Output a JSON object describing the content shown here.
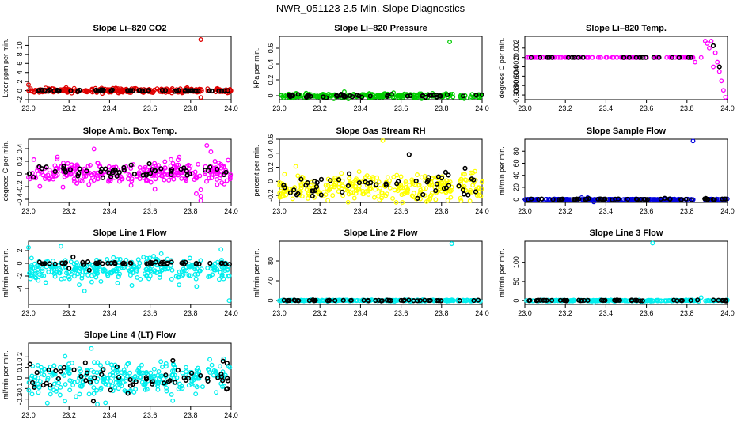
{
  "figure_title": "NWR_051123  2.5 Min. Slope Diagnostics",
  "colors": {
    "red": "#e00000",
    "green": "#00cc00",
    "magenta": "#ff00ff",
    "yellow": "#ffff00",
    "blue": "#0000dd",
    "cyan": "#00eeee",
    "black": "#000000"
  },
  "chart_data": [
    {
      "type": "scatter",
      "title": "Slope Li–820 CO2",
      "ylabel": "Ltcor ppm per min.",
      "xlim": [
        23.0,
        24.0
      ],
      "xticks": [
        "23.0",
        "23.2",
        "23.4",
        "23.6",
        "23.8",
        "24.0"
      ],
      "ylim": [
        -2,
        12
      ],
      "yticks": [
        -2,
        0,
        2,
        4,
        6,
        8,
        10
      ],
      "series": [
        {
          "name": "all",
          "color": "red",
          "n": 260,
          "center": 0.0,
          "spread": 0.25,
          "gap": [
            23.86,
            23.88
          ],
          "extra": [
            [
              23.0,
              1.3
            ],
            [
              23.085,
              0.6
            ],
            [
              23.85,
              11.3
            ],
            [
              23.85,
              -1.5
            ],
            [
              23.33,
              0.5
            ],
            [
              23.66,
              -0.3
            ]
          ]
        },
        {
          "name": "subset",
          "color": "black",
          "n": 55,
          "center": 0.0,
          "spread": 0.1,
          "gap": [
            23.86,
            23.88
          ]
        }
      ]
    },
    {
      "type": "scatter",
      "title": "Slope Li–820 Pressure",
      "ylabel": "kPa per min.",
      "xlim": [
        23.0,
        24.0
      ],
      "xticks": [
        "23.0",
        "23.2",
        "23.4",
        "23.6",
        "23.8",
        "24.0"
      ],
      "ylim": [
        -0.05,
        0.75
      ],
      "yticks": [
        0.0,
        0.2,
        0.4,
        0.6
      ],
      "series": [
        {
          "name": "all",
          "color": "green",
          "n": 260,
          "center": 0.0,
          "spread": 0.015,
          "gap": [
            23.86,
            23.89
          ],
          "extra": [
            [
              23.84,
              0.68
            ],
            [
              23.32,
              0.05
            ],
            [
              23.34,
              -0.04
            ]
          ]
        },
        {
          "name": "subset",
          "color": "black",
          "n": 50,
          "center": 0.0,
          "spread": 0.01,
          "gap": [
            23.86,
            23.89
          ]
        }
      ]
    },
    {
      "type": "scatter",
      "title": "Slope Li–820 Temp.",
      "ylabel": "degrees C per min.",
      "xlim": [
        23.0,
        24.0
      ],
      "xticks": [
        "23.0",
        "23.2",
        "23.4",
        "23.6",
        "23.8",
        "24.0"
      ],
      "ylim": [
        -0.009,
        0.0045
      ],
      "yticks": [
        -0.008,
        -0.006,
        -0.004,
        -0.002,
        0.0,
        0.002
      ],
      "series": [
        {
          "name": "all",
          "color": "magenta",
          "n": 110,
          "center": 0.0,
          "spread": 0.0,
          "xmax": 23.83,
          "extra": [
            [
              23.84,
              -0.001
            ],
            [
              23.87,
              0.0
            ],
            [
              23.89,
              0.0035
            ],
            [
              23.9,
              0.003
            ],
            [
              23.91,
              0.002
            ],
            [
              23.92,
              0.0035
            ],
            [
              23.93,
              0.0025
            ],
            [
              23.94,
              0.001
            ],
            [
              23.95,
              -0.001
            ],
            [
              23.96,
              -0.003
            ],
            [
              23.97,
              -0.005
            ],
            [
              23.98,
              -0.007
            ],
            [
              23.99,
              -0.0085
            ],
            [
              23.93,
              -0.002
            ]
          ]
        },
        {
          "name": "subset",
          "color": "black",
          "n": 25,
          "center": 0.0,
          "spread": 0.0,
          "xmax": 23.83,
          "extra": [
            [
              23.93,
              0.0025
            ],
            [
              23.96,
              -0.002
            ]
          ]
        }
      ]
    },
    {
      "type": "scatter",
      "title": "Slope Amb. Box Temp.",
      "ylabel": "degrees C per min.",
      "xlim": [
        23.0,
        24.0
      ],
      "xticks": [
        "23.0",
        "23.2",
        "23.4",
        "23.6",
        "23.8",
        "24.0"
      ],
      "ylim": [
        -0.45,
        0.55
      ],
      "yticks": [
        -0.4,
        -0.2,
        0.0,
        0.2,
        0.4
      ],
      "series": [
        {
          "name": "all",
          "color": "magenta",
          "n": 300,
          "center": 0.02,
          "spread": 0.09,
          "gap": [
            23.85,
            23.87
          ],
          "extra": [
            [
              23.85,
              -0.25
            ],
            [
              23.85,
              -0.35
            ],
            [
              23.85,
              -0.42
            ],
            [
              23.88,
              0.45
            ],
            [
              23.9,
              0.35
            ],
            [
              23.92,
              0.2
            ],
            [
              23.95,
              0.15
            ]
          ]
        },
        {
          "name": "subset",
          "color": "black",
          "n": 55,
          "center": 0.03,
          "spread": 0.05,
          "gap": [
            23.85,
            23.87
          ]
        }
      ]
    },
    {
      "type": "scatter",
      "title": "Slope Gas Stream RH",
      "ylabel": "percent per min.",
      "xlim": [
        23.0,
        24.0
      ],
      "xticks": [
        "23.0",
        "23.2",
        "23.4",
        "23.6",
        "23.8",
        "24.0"
      ],
      "ylim": [
        -0.3,
        0.6
      ],
      "yticks": [
        -0.2,
        0.0,
        0.2,
        0.4,
        0.6
      ],
      "series": [
        {
          "name": "all",
          "color": "yellow",
          "n": 320,
          "center": -0.08,
          "spread": 0.1,
          "gap": [
            23.85,
            23.88
          ],
          "extra": [
            [
              23.51,
              0.58
            ],
            [
              23.94,
              -0.28
            ]
          ]
        },
        {
          "name": "subset",
          "color": "black",
          "n": 55,
          "center": -0.08,
          "spread": 0.09,
          "gap": [
            23.85,
            23.88
          ],
          "extra": [
            [
              23.64,
              0.38
            ]
          ]
        }
      ]
    },
    {
      "type": "scatter",
      "title": "Slope Sample Flow",
      "ylabel": "ml/min per min.",
      "xlim": [
        23.0,
        24.0
      ],
      "xticks": [
        "23.0",
        "23.2",
        "23.4",
        "23.6",
        "23.8",
        "24.0"
      ],
      "ylim": [
        -5,
        100
      ],
      "yticks": [
        0,
        20,
        40,
        60,
        80
      ],
      "series": [
        {
          "name": "all",
          "color": "blue",
          "n": 250,
          "center": 0.0,
          "spread": 0.4,
          "gap": [
            23.84,
            23.88
          ],
          "extra": [
            [
              23.83,
              97
            ],
            [
              23.28,
              3
            ],
            [
              23.34,
              -4
            ],
            [
              23.31,
              3
            ]
          ]
        },
        {
          "name": "subset",
          "color": "black",
          "n": 55,
          "center": 0.3,
          "spread": 0.6,
          "gap": [
            23.84,
            23.88
          ]
        }
      ]
    },
    {
      "type": "scatter",
      "title": "Slope Line 1 Flow",
      "ylabel": "ml/min per min.",
      "xlim": [
        23.0,
        24.0
      ],
      "xticks": [
        "23.0",
        "23.2",
        "23.4",
        "23.6",
        "23.8",
        "24.0"
      ],
      "ylim": [
        -6.5,
        3.5
      ],
      "yticks": [
        -4,
        -2,
        0,
        2
      ],
      "series": [
        {
          "name": "all",
          "color": "cyan",
          "n": 300,
          "center": -1.0,
          "spread": 0.9,
          "gap": [
            23.86,
            23.88
          ],
          "extra": [
            [
              23.0,
              2.5
            ],
            [
              23.16,
              2.7
            ],
            [
              23.95,
              2.2
            ],
            [
              23.99,
              -5.9
            ],
            [
              23.25,
              -3.4
            ],
            [
              23.51,
              -3.5
            ]
          ]
        },
        {
          "name": "subset",
          "color": "black",
          "n": 55,
          "center": 0.0,
          "spread": 0.1,
          "gap": [
            23.86,
            23.88
          ],
          "extra": [
            [
              23.22,
              1.0
            ],
            [
              23.3,
              -1.1
            ],
            [
              23.2,
              -0.8
            ]
          ]
        }
      ]
    },
    {
      "type": "scatter",
      "title": "Slope Line 2 Flow",
      "ylabel": "ml/min per min.",
      "xlim": [
        23.0,
        24.0
      ],
      "xticks": [
        "23.0",
        "23.2",
        "23.4",
        "23.6",
        "23.8",
        "24.0"
      ],
      "ylim": [
        -8,
        120
      ],
      "yticks": [
        0,
        40,
        80
      ],
      "series": [
        {
          "name": "all",
          "color": "cyan",
          "n": 250,
          "center": 0.0,
          "spread": 0.6,
          "gap": [
            23.86,
            23.88
          ],
          "extra": [
            [
              23.85,
              115
            ]
          ]
        },
        {
          "name": "subset",
          "color": "black",
          "n": 50,
          "center": 0.0,
          "spread": 0.4,
          "gap": [
            23.86,
            23.88
          ]
        }
      ]
    },
    {
      "type": "scatter",
      "title": "Slope Line 3 Flow",
      "ylabel": "ml/min per min.",
      "xlim": [
        23.0,
        24.0
      ],
      "xticks": [
        "23.0",
        "23.2",
        "23.4",
        "23.6",
        "23.8",
        "24.0"
      ],
      "ylim": [
        -10,
        155
      ],
      "yticks": [
        0,
        50,
        100
      ],
      "series": [
        {
          "name": "all",
          "color": "cyan",
          "n": 250,
          "center": 0.0,
          "spread": 0.7,
          "gap": [
            23.86,
            23.88
          ],
          "extra": [
            [
              23.63,
              150
            ],
            [
              23.34,
              -5
            ],
            [
              23.87,
              8
            ]
          ]
        },
        {
          "name": "subset",
          "color": "black",
          "n": 50,
          "center": 0.5,
          "spread": 0.6,
          "gap": [
            23.86,
            23.88
          ]
        }
      ]
    },
    {
      "type": "scatter",
      "title": "Slope Line 4 (LT) Flow",
      "ylabel": "ml/min per min.",
      "xlim": [
        23.0,
        24.0
      ],
      "xticks": [
        "23.0",
        "23.2",
        "23.4",
        "23.6",
        "23.8",
        "24.0"
      ],
      "ylim": [
        -0.27,
        0.33
      ],
      "yticks": [
        -0.2,
        -0.1,
        0.0,
        0.1,
        0.2
      ],
      "series": [
        {
          "name": "all",
          "color": "cyan",
          "n": 300,
          "center": 0.0,
          "spread": 0.08,
          "gap": [
            23.86,
            23.88
          ],
          "extra": [
            [
              23.31,
              0.28
            ],
            [
              23.18,
              -0.22
            ],
            [
              23.34,
              -0.25
            ]
          ]
        },
        {
          "name": "subset",
          "color": "black",
          "n": 55,
          "center": 0.0,
          "spread": 0.08,
          "gap": [
            23.86,
            23.88
          ],
          "extra": [
            [
              23.32,
              -0.22
            ],
            [
              23.98,
              0.14
            ],
            [
              23.96,
              0.16
            ]
          ]
        }
      ]
    }
  ]
}
